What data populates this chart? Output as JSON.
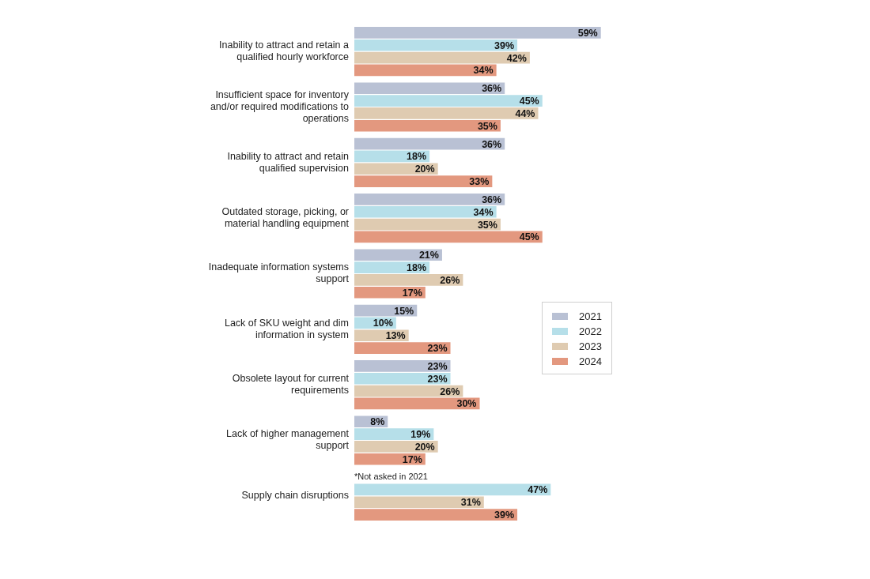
{
  "chart_data": {
    "type": "bar",
    "orientation": "horizontal",
    "tick_labels": "y",
    "grid": false,
    "legend": "right",
    "categories": [
      "Inability to attract and retain a qualified hourly workforce",
      "Insufficient space for inventory and/or required modifications to operations",
      "Inability to attract and retain qualified supervision",
      "Outdated storage, picking, or material handling equipment",
      "Inadequate information systems support",
      "Lack of SKU weight and dim information in system",
      "Obsolete layout for current requirements",
      "Lack of higher management support",
      "Supply chain disruptions"
    ],
    "series": [
      {
        "name": "2021",
        "color": "#b9c1d4",
        "values": [
          59,
          36,
          36,
          36,
          21,
          15,
          23,
          8,
          null
        ],
        "value_labels": [
          "59%",
          "36%",
          "36%",
          "36%",
          "21%",
          "15%",
          "23%",
          "8%",
          null
        ]
      },
      {
        "name": "2022",
        "color": "#b6dfe9",
        "values": [
          39,
          45,
          18,
          34,
          18,
          10,
          23,
          19,
          47
        ],
        "value_labels": [
          "39%",
          "45%",
          "18%",
          "34%",
          "18%",
          "10%",
          "23%",
          "19%",
          "47%"
        ]
      },
      {
        "name": "2023",
        "color": "#dfcbb1",
        "values": [
          42,
          44,
          20,
          35,
          26,
          13,
          26,
          20,
          31
        ],
        "value_labels": [
          "42%",
          "44%",
          "20%",
          "35%",
          "26%",
          "13%",
          "26%",
          "20%",
          "31%"
        ]
      },
      {
        "name": "2024",
        "color": "#e3987f",
        "values": [
          34,
          35,
          33,
          45,
          17,
          23,
          30,
          17,
          39
        ],
        "value_labels": [
          "34%",
          "35%",
          "33%",
          "45%",
          "17%",
          "23%",
          "30%",
          "17%",
          "39%"
        ]
      }
    ],
    "annotations": [
      "*Not asked in 2021"
    ]
  }
}
